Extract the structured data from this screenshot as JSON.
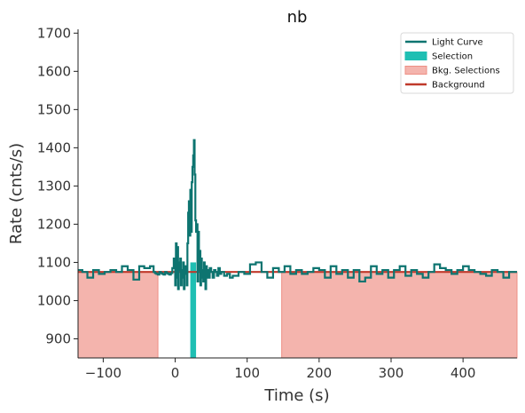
{
  "chart_data": {
    "type": "line",
    "title": "nb",
    "xlabel": "Time (s)",
    "ylabel": "Rate (cnts/s)",
    "xlim": [
      -135,
      475
    ],
    "ylim": [
      850,
      1710
    ],
    "x_ticks": [
      -100,
      0,
      100,
      200,
      300,
      400
    ],
    "x_tick_labels": [
      "−100",
      "0",
      "100",
      "200",
      "300",
      "400"
    ],
    "y_ticks": [
      900,
      1000,
      1100,
      1200,
      1300,
      1400,
      1500,
      1600,
      1700
    ],
    "y_tick_labels": [
      "900",
      "1000",
      "1100",
      "1200",
      "1300",
      "1400",
      "1500",
      "1600",
      "1700"
    ],
    "legend_position": "top-right",
    "legend": [
      {
        "label": "Light Curve",
        "kind": "line",
        "color": "#0d7470"
      },
      {
        "label": "Selection",
        "kind": "patch",
        "color": "#1fbfb3"
      },
      {
        "label": "Bkg. Selections",
        "kind": "patch",
        "color": "#f4b4ad"
      },
      {
        "label": "Background",
        "kind": "line",
        "color": "#c0392b"
      }
    ],
    "background_level": 1075,
    "selection": {
      "x": [
        21,
        29
      ]
    },
    "bkg_selections": [
      {
        "x": [
          -135,
          -24
        ]
      },
      {
        "x": [
          148,
          475
        ]
      }
    ],
    "light_curve": {
      "x": [
        -135,
        -129,
        -122,
        -114,
        -106,
        -98,
        -90,
        -82,
        -74,
        -66,
        -58,
        -50,
        -43,
        -35,
        -30,
        -28,
        -26,
        -24,
        -22,
        -20,
        -18,
        -16,
        -14,
        -12,
        -10,
        -8,
        -6,
        -4,
        -2,
        0,
        1,
        2,
        3,
        4,
        5,
        6,
        7,
        8,
        9,
        10,
        11,
        12,
        13,
        14,
        15,
        16,
        17,
        18,
        19,
        20,
        21,
        22,
        23,
        24,
        25,
        26,
        27,
        28,
        29,
        30,
        31,
        32,
        33,
        34,
        35,
        36,
        37,
        38,
        39,
        40,
        41,
        42,
        43,
        44,
        45,
        46,
        47,
        48,
        50,
        52,
        54,
        56,
        58,
        60,
        62,
        64,
        68,
        72,
        76,
        80,
        88,
        96,
        104,
        112,
        120,
        128,
        136,
        144,
        152,
        160,
        168,
        176,
        184,
        192,
        200,
        208,
        216,
        224,
        232,
        240,
        248,
        256,
        264,
        272,
        280,
        288,
        296,
        304,
        312,
        320,
        328,
        336,
        344,
        352,
        360,
        368,
        376,
        384,
        392,
        400,
        408,
        416,
        424,
        432,
        440,
        448,
        456,
        464,
        470,
        475
      ],
      "y": [
        1080,
        1075,
        1060,
        1080,
        1070,
        1075,
        1080,
        1075,
        1090,
        1080,
        1055,
        1090,
        1085,
        1090,
        1075,
        1072,
        1070,
        1068,
        1075,
        1072,
        1070,
        1068,
        1075,
        1072,
        1070,
        1068,
        1072,
        1085,
        1110,
        1040,
        1150,
        1060,
        1140,
        1030,
        1100,
        1080,
        1110,
        1040,
        1080,
        1060,
        1100,
        1030,
        1090,
        1070,
        1090,
        1040,
        1150,
        1230,
        1260,
        1170,
        1290,
        1180,
        1310,
        1350,
        1380,
        1420,
        1330,
        1210,
        1180,
        1200,
        1050,
        1180,
        1080,
        1130,
        1040,
        1110,
        1060,
        1080,
        1050,
        1100,
        1070,
        1030,
        1090,
        1060,
        1080,
        1070,
        1060,
        1085,
        1075,
        1060,
        1080,
        1075,
        1065,
        1085,
        1070,
        1075,
        1065,
        1070,
        1060,
        1065,
        1075,
        1070,
        1095,
        1100,
        1075,
        1060,
        1085,
        1075,
        1090,
        1070,
        1080,
        1070,
        1075,
        1085,
        1080,
        1060,
        1090,
        1070,
        1080,
        1060,
        1080,
        1050,
        1060,
        1090,
        1070,
        1080,
        1060,
        1080,
        1090,
        1065,
        1080,
        1070,
        1060,
        1075,
        1095,
        1085,
        1080,
        1070,
        1080,
        1090,
        1080,
        1075,
        1070,
        1065,
        1080,
        1075,
        1060,
        1075,
        1075,
        1075
      ]
    }
  }
}
